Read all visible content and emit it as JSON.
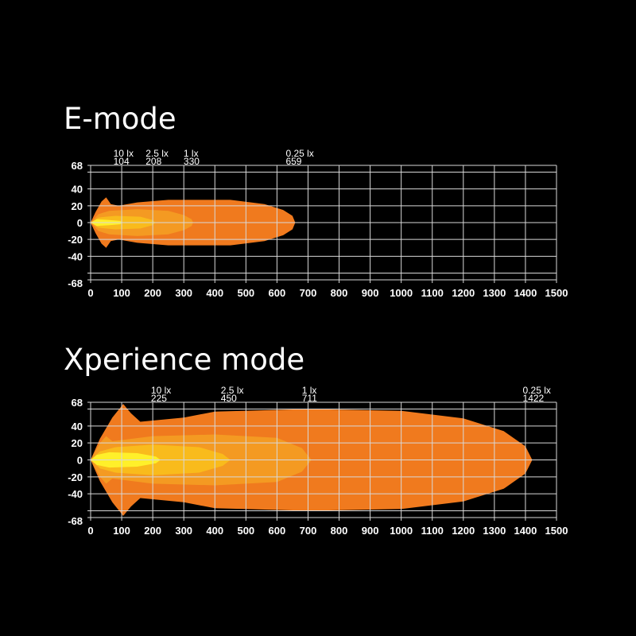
{
  "colors": {
    "background": "#000000",
    "0.25 lx": "#f07a1e",
    "1 lx": "#f49a22",
    "2.5 lx": "#f9bb1c",
    "10 lx": "#fff02a",
    "grid": "#d8d8d8"
  },
  "chart_data": [
    {
      "type": "area",
      "title": "E-mode",
      "xlim": [
        0,
        1500
      ],
      "ylim": [
        -68,
        68
      ],
      "x_ticks": [
        0,
        100,
        200,
        300,
        400,
        500,
        600,
        700,
        800,
        900,
        1000,
        1100,
        1200,
        1300,
        1400,
        1500
      ],
      "y_ticks": [
        68,
        40,
        20,
        0,
        -20,
        -40,
        -68
      ],
      "grid": true,
      "series": [
        {
          "name": "0.25 lx",
          "reach": 659,
          "reach_label": "659",
          "points": [
            [
              0,
              0
            ],
            [
              15,
              12
            ],
            [
              35,
              25
            ],
            [
              50,
              30
            ],
            [
              65,
              22
            ],
            [
              90,
              20
            ],
            [
              150,
              24
            ],
            [
              250,
              27
            ],
            [
              450,
              27
            ],
            [
              560,
              22
            ],
            [
              620,
              15
            ],
            [
              650,
              8
            ],
            [
              659,
              0
            ]
          ]
        },
        {
          "name": "1 lx",
          "reach": 330,
          "reach_label": "330",
          "points": [
            [
              0,
              0
            ],
            [
              25,
              10
            ],
            [
              60,
              14
            ],
            [
              150,
              16
            ],
            [
              250,
              14
            ],
            [
              300,
              9
            ],
            [
              325,
              4
            ],
            [
              330,
              0
            ]
          ]
        },
        {
          "name": "2.5 lx",
          "reach": 208,
          "reach_label": "208",
          "points": [
            [
              0,
              0
            ],
            [
              25,
              6
            ],
            [
              80,
              8
            ],
            [
              160,
              7
            ],
            [
              200,
              3
            ],
            [
              208,
              0
            ]
          ]
        },
        {
          "name": "10 lx",
          "reach": 104,
          "reach_label": "104",
          "points": [
            [
              0,
              0
            ],
            [
              20,
              4
            ],
            [
              60,
              3
            ],
            [
              95,
              2
            ],
            [
              104,
              0
            ]
          ]
        }
      ]
    },
    {
      "type": "area",
      "title": "Xperience mode",
      "xlim": [
        0,
        1500
      ],
      "ylim": [
        -68,
        68
      ],
      "x_ticks": [
        0,
        100,
        200,
        300,
        400,
        500,
        600,
        700,
        800,
        900,
        1000,
        1100,
        1200,
        1300,
        1400,
        1500
      ],
      "y_ticks": [
        68,
        40,
        20,
        0,
        -20,
        -40,
        -68
      ],
      "grid": true,
      "series": [
        {
          "name": "0.25 lx",
          "reach": 1422,
          "reach_label": "1422",
          "points": [
            [
              0,
              0
            ],
            [
              30,
              25
            ],
            [
              70,
              50
            ],
            [
              105,
              66
            ],
            [
              130,
              55
            ],
            [
              160,
              45
            ],
            [
              300,
              50
            ],
            [
              400,
              57
            ],
            [
              700,
              60
            ],
            [
              1000,
              58
            ],
            [
              1200,
              49
            ],
            [
              1330,
              34
            ],
            [
              1400,
              16
            ],
            [
              1422,
              0
            ]
          ]
        },
        {
          "name": "1 lx",
          "reach": 711,
          "reach_label": "711",
          "points": [
            [
              0,
              0
            ],
            [
              30,
              20
            ],
            [
              50,
              28
            ],
            [
              70,
              22
            ],
            [
              200,
              28
            ],
            [
              400,
              30
            ],
            [
              600,
              26
            ],
            [
              680,
              14
            ],
            [
              711,
              0
            ]
          ]
        },
        {
          "name": "2.5 lx",
          "reach": 450,
          "reach_label": "450",
          "points": [
            [
              0,
              0
            ],
            [
              30,
              10
            ],
            [
              80,
              15
            ],
            [
              200,
              18
            ],
            [
              350,
              15
            ],
            [
              425,
              7
            ],
            [
              450,
              0
            ]
          ]
        },
        {
          "name": "10 lx",
          "reach": 225,
          "reach_label": "225",
          "points": [
            [
              0,
              0
            ],
            [
              20,
              6
            ],
            [
              60,
              9
            ],
            [
              150,
              8
            ],
            [
              210,
              4
            ],
            [
              225,
              0
            ]
          ]
        }
      ]
    }
  ]
}
